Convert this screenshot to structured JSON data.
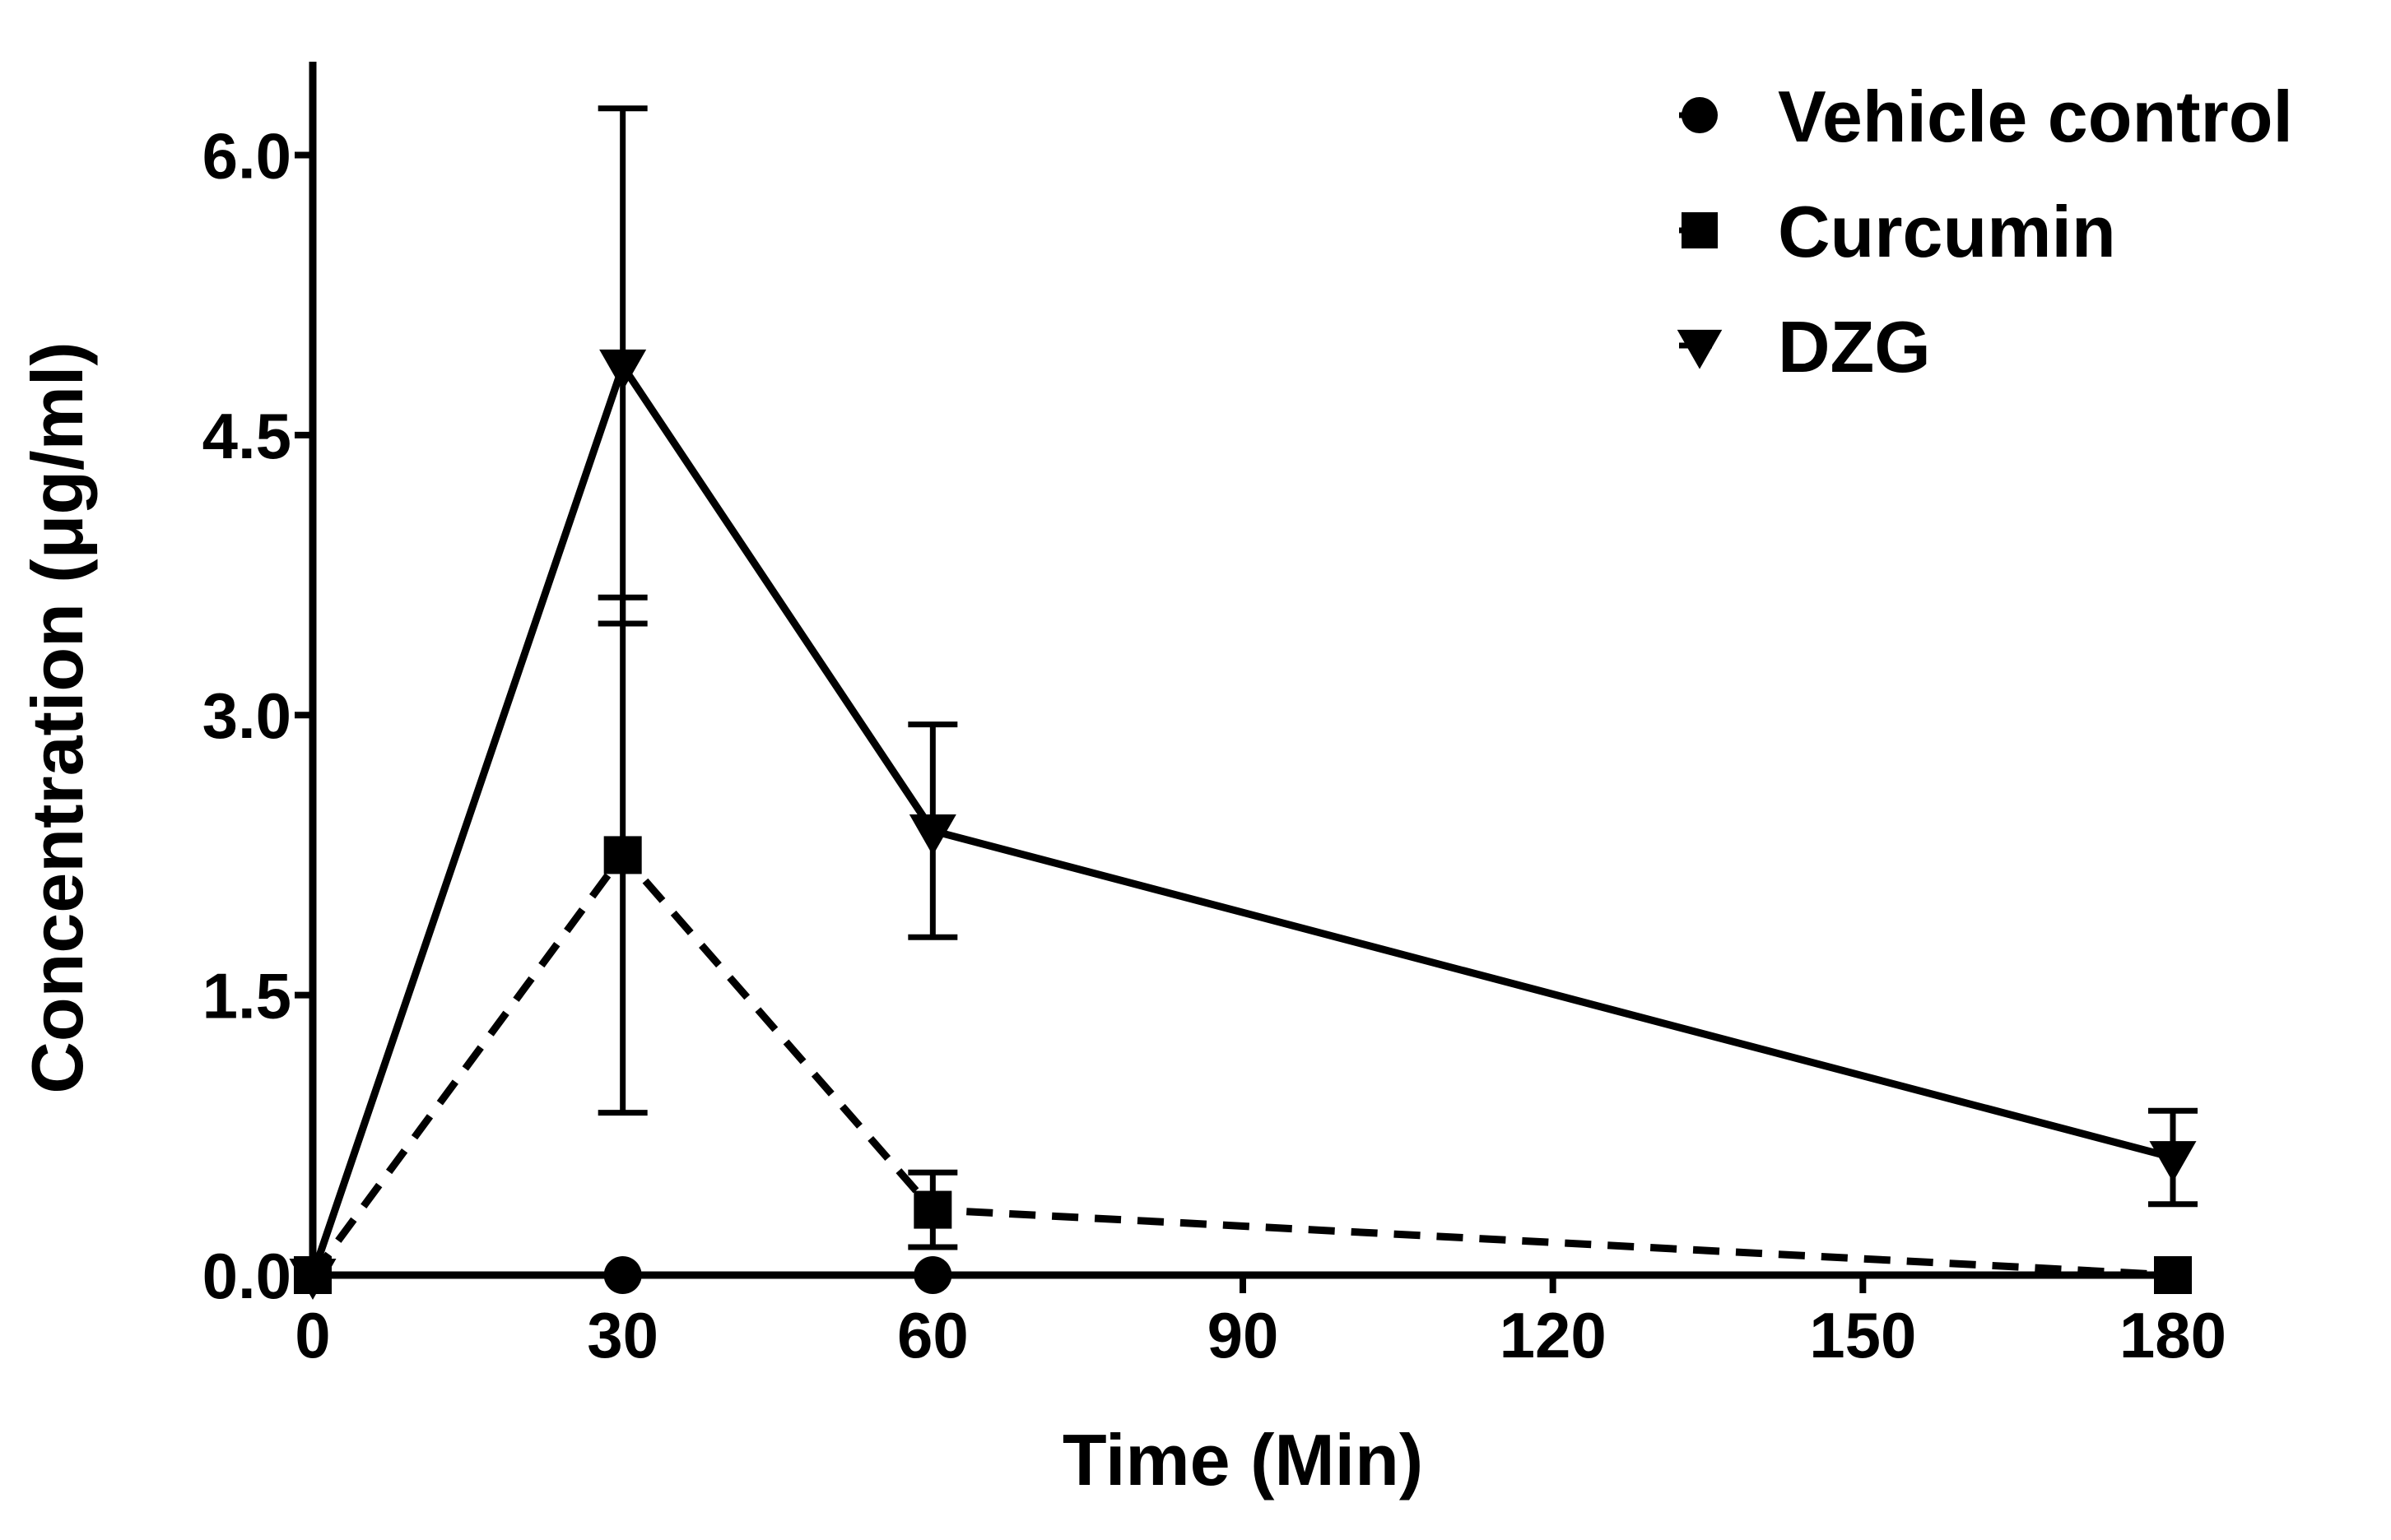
{
  "chart_data": {
    "type": "line",
    "title": "",
    "xlabel": "Time (Min)",
    "ylabel": "Concentration (μg/ml)",
    "xlim": [
      0,
      180
    ],
    "ylim": [
      0,
      6.5
    ],
    "xticks": [
      0,
      30,
      60,
      90,
      120,
      150,
      180
    ],
    "xtick_labels": [
      "0",
      "30",
      "60",
      "90",
      "120",
      "150",
      "180"
    ],
    "yticks": [
      0,
      1.5,
      3.0,
      4.5,
      6.0
    ],
    "ytick_labels": [
      "0.0",
      "1.5",
      "3.0",
      "4.5",
      "6.0"
    ],
    "grid": false,
    "legend_position": "top-right",
    "series": [
      {
        "name": "Vehicle control",
        "marker": "circle",
        "line_style": "solid",
        "x": [
          0,
          30,
          60,
          180
        ],
        "values": [
          0,
          0,
          0,
          0
        ],
        "error": [
          0,
          0,
          0,
          0
        ]
      },
      {
        "name": "Curcumin",
        "marker": "square",
        "line_style": "dashed",
        "x": [
          0,
          30,
          60,
          180
        ],
        "values": [
          0,
          2.25,
          0.35,
          0
        ],
        "error": [
          0,
          1.38,
          0.2,
          0
        ]
      },
      {
        "name": "DZG",
        "marker": "triangle-down",
        "line_style": "solid",
        "x": [
          0,
          30,
          60,
          180
        ],
        "values": [
          0,
          4.87,
          2.38,
          0.63
        ],
        "error": [
          0,
          1.38,
          0.57,
          0.25
        ]
      }
    ],
    "colors": {
      "line": "#000000",
      "background": "#ffffff"
    }
  }
}
